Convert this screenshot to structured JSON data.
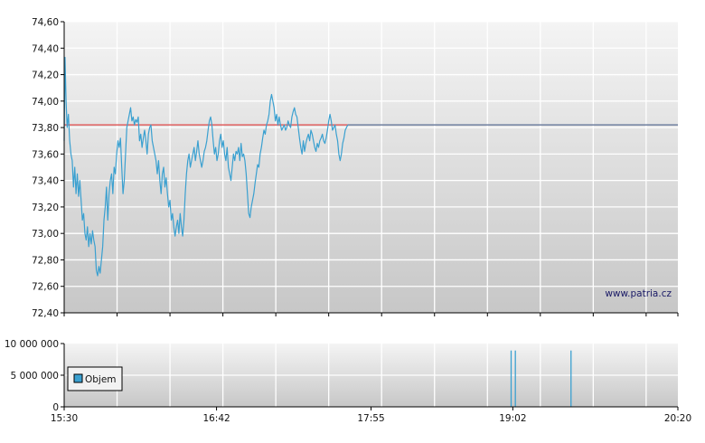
{
  "chart_data": [
    {
      "type": "line",
      "name": "price-chart",
      "ylim": [
        72.4,
        74.6
      ],
      "y_ticks": [
        "74,60",
        "74,40",
        "74,20",
        "74,00",
        "73,80",
        "73,60",
        "73,40",
        "73,20",
        "73,00",
        "72,80",
        "72,60",
        "72,40"
      ],
      "y_tick_values": [
        74.6,
        74.4,
        74.2,
        74.0,
        73.8,
        73.6,
        73.4,
        73.2,
        73.0,
        72.8,
        72.6,
        72.4
      ],
      "x_range_minutes": [
        0,
        290
      ],
      "reference_line": {
        "value": 73.82,
        "color": "#e06060"
      },
      "reference_extension_color": "#7080a0",
      "series_color": "#3aa0d0",
      "watermark": "www.patria.cz",
      "grid": true,
      "series": [
        {
          "points": [
            [
              0,
              73.7
            ],
            [
              0.4,
              74.33
            ],
            [
              0.9,
              74.0
            ],
            [
              1.4,
              73.8
            ],
            [
              2,
              73.9
            ],
            [
              2.6,
              73.7
            ],
            [
              3.2,
              73.6
            ],
            [
              3.8,
              73.55
            ],
            [
              4.4,
              73.35
            ],
            [
              5,
              73.5
            ],
            [
              5.6,
              73.3
            ],
            [
              6.2,
              73.45
            ],
            [
              6.8,
              73.28
            ],
            [
              7.4,
              73.4
            ],
            [
              8,
              73.25
            ],
            [
              8.6,
              73.1
            ],
            [
              9.2,
              73.15
            ],
            [
              9.8,
              73.0
            ],
            [
              10.4,
              72.95
            ],
            [
              11,
              73.05
            ],
            [
              11.6,
              72.9
            ],
            [
              12.2,
              73.0
            ],
            [
              12.8,
              72.92
            ],
            [
              13.4,
              73.02
            ],
            [
              14,
              72.95
            ],
            [
              14.6,
              72.9
            ],
            [
              15.2,
              72.72
            ],
            [
              15.8,
              72.68
            ],
            [
              16.4,
              72.75
            ],
            [
              17,
              72.7
            ],
            [
              17.6,
              72.8
            ],
            [
              18.2,
              72.9
            ],
            [
              18.8,
              73.1
            ],
            [
              19.4,
              73.2
            ],
            [
              20,
              73.35
            ],
            [
              20.6,
              73.1
            ],
            [
              21.2,
              73.3
            ],
            [
              21.8,
              73.4
            ],
            [
              22.4,
              73.45
            ],
            [
              23,
              73.3
            ],
            [
              23.6,
              73.5
            ],
            [
              24.2,
              73.45
            ],
            [
              24.8,
              73.6
            ],
            [
              25.4,
              73.7
            ],
            [
              26,
              73.65
            ],
            [
              26.6,
              73.72
            ],
            [
              27.2,
              73.5
            ],
            [
              27.8,
              73.3
            ],
            [
              28.4,
              73.4
            ],
            [
              29,
              73.6
            ],
            [
              29.6,
              73.8
            ],
            [
              30.2,
              73.85
            ],
            [
              30.8,
              73.9
            ],
            [
              31.4,
              73.95
            ],
            [
              32,
              73.85
            ],
            [
              32.6,
              73.88
            ],
            [
              33.2,
              73.82
            ],
            [
              33.8,
              73.86
            ],
            [
              34.4,
              73.84
            ],
            [
              35,
              73.88
            ],
            [
              35.6,
              73.7
            ],
            [
              36.2,
              73.75
            ],
            [
              36.8,
              73.65
            ],
            [
              37.4,
              73.72
            ],
            [
              38,
              73.78
            ],
            [
              38.6,
              73.7
            ],
            [
              39.2,
              73.6
            ],
            [
              39.8,
              73.75
            ],
            [
              40.4,
              73.8
            ],
            [
              41,
              73.82
            ],
            [
              41.6,
              73.7
            ],
            [
              42.2,
              73.65
            ],
            [
              42.8,
              73.6
            ],
            [
              43.4,
              73.55
            ],
            [
              44,
              73.45
            ],
            [
              44.6,
              73.55
            ],
            [
              45.2,
              73.4
            ],
            [
              45.8,
              73.3
            ],
            [
              46.4,
              73.45
            ],
            [
              47,
              73.5
            ],
            [
              47.6,
              73.35
            ],
            [
              48.2,
              73.42
            ],
            [
              48.8,
              73.3
            ],
            [
              49.4,
              73.2
            ],
            [
              50,
              73.25
            ],
            [
              50.6,
              73.1
            ],
            [
              51.2,
              73.15
            ],
            [
              51.8,
              73.05
            ],
            [
              52.4,
              72.98
            ],
            [
              53,
              73.05
            ],
            [
              53.6,
              73.1
            ],
            [
              54.2,
              73.0
            ],
            [
              54.8,
              73.15
            ],
            [
              55.4,
              73.05
            ],
            [
              56,
              72.98
            ],
            [
              56.6,
              73.1
            ],
            [
              57.2,
              73.3
            ],
            [
              57.8,
              73.45
            ],
            [
              58.4,
              73.55
            ],
            [
              59,
              73.6
            ],
            [
              59.6,
              73.5
            ],
            [
              60.2,
              73.55
            ],
            [
              60.8,
              73.6
            ],
            [
              61.4,
              73.65
            ],
            [
              62,
              73.55
            ],
            [
              62.6,
              73.62
            ],
            [
              63.2,
              73.7
            ],
            [
              63.8,
              73.6
            ],
            [
              64.4,
              73.55
            ],
            [
              65,
              73.5
            ],
            [
              65.6,
              73.55
            ],
            [
              66.2,
              73.62
            ],
            [
              66.8,
              73.65
            ],
            [
              67.4,
              73.7
            ],
            [
              68,
              73.78
            ],
            [
              68.6,
              73.85
            ],
            [
              69.2,
              73.88
            ],
            [
              69.8,
              73.82
            ],
            [
              70.4,
              73.7
            ],
            [
              71,
              73.6
            ],
            [
              71.6,
              73.65
            ],
            [
              72.2,
              73.55
            ],
            [
              72.8,
              73.6
            ],
            [
              73.4,
              73.7
            ],
            [
              74,
              73.75
            ],
            [
              74.6,
              73.65
            ],
            [
              75.2,
              73.7
            ],
            [
              75.8,
              73.6
            ],
            [
              76.4,
              73.55
            ],
            [
              77,
              73.65
            ],
            [
              77.6,
              73.5
            ],
            [
              78.2,
              73.45
            ],
            [
              78.8,
              73.4
            ],
            [
              79.4,
              73.5
            ],
            [
              80,
              73.6
            ],
            [
              80.6,
              73.55
            ],
            [
              81.2,
              73.62
            ],
            [
              81.8,
              73.6
            ],
            [
              82.4,
              73.65
            ],
            [
              83,
              73.55
            ],
            [
              83.6,
              73.68
            ],
            [
              84.2,
              73.58
            ],
            [
              84.8,
              73.6
            ],
            [
              85.4,
              73.55
            ],
            [
              86,
              73.45
            ],
            [
              86.6,
              73.3
            ],
            [
              87.2,
              73.15
            ],
            [
              87.8,
              73.12
            ],
            [
              88.4,
              73.2
            ],
            [
              89,
              73.25
            ],
            [
              89.6,
              73.3
            ],
            [
              90.2,
              73.38
            ],
            [
              90.8,
              73.45
            ],
            [
              91.4,
              73.52
            ],
            [
              92,
              73.5
            ],
            [
              92.6,
              73.6
            ],
            [
              93.2,
              73.65
            ],
            [
              93.8,
              73.72
            ],
            [
              94.4,
              73.78
            ],
            [
              95,
              73.75
            ],
            [
              95.6,
              73.82
            ],
            [
              96.2,
              73.85
            ],
            [
              96.8,
              73.9
            ],
            [
              97.4,
              74.0
            ],
            [
              98,
              74.05
            ],
            [
              98.6,
              74.0
            ],
            [
              99.2,
              73.95
            ],
            [
              99.8,
              73.85
            ],
            [
              100.4,
              73.9
            ],
            [
              101,
              73.82
            ],
            [
              101.6,
              73.88
            ],
            [
              102.2,
              73.82
            ],
            [
              102.8,
              73.78
            ],
            [
              103.4,
              73.8
            ],
            [
              104,
              73.82
            ],
            [
              104.6,
              73.78
            ],
            [
              105.2,
              73.8
            ],
            [
              105.8,
              73.85
            ],
            [
              106.4,
              73.82
            ],
            [
              107,
              73.8
            ],
            [
              107.6,
              73.88
            ],
            [
              108.2,
              73.92
            ],
            [
              108.8,
              73.95
            ],
            [
              109.4,
              73.9
            ],
            [
              110,
              73.88
            ],
            [
              110.6,
              73.8
            ],
            [
              111.2,
              73.72
            ],
            [
              111.8,
              73.65
            ],
            [
              112.4,
              73.6
            ],
            [
              113,
              73.7
            ],
            [
              113.6,
              73.62
            ],
            [
              114.2,
              73.68
            ],
            [
              114.8,
              73.72
            ],
            [
              115.4,
              73.75
            ],
            [
              116,
              73.7
            ],
            [
              116.6,
              73.78
            ],
            [
              117.2,
              73.75
            ],
            [
              117.8,
              73.7
            ],
            [
              118.4,
              73.65
            ],
            [
              119,
              73.62
            ],
            [
              119.6,
              73.68
            ],
            [
              120.2,
              73.65
            ],
            [
              120.8,
              73.7
            ],
            [
              121.4,
              73.72
            ],
            [
              122,
              73.75
            ],
            [
              122.6,
              73.7
            ],
            [
              123.2,
              73.68
            ],
            [
              123.8,
              73.72
            ],
            [
              124.4,
              73.78
            ],
            [
              125,
              73.85
            ],
            [
              125.6,
              73.9
            ],
            [
              126.2,
              73.85
            ],
            [
              126.8,
              73.78
            ],
            [
              127.4,
              73.8
            ],
            [
              128,
              73.82
            ],
            [
              128.6,
              73.75
            ],
            [
              129.2,
              73.7
            ],
            [
              129.8,
              73.6
            ],
            [
              130.4,
              73.55
            ],
            [
              131,
              73.6
            ],
            [
              131.6,
              73.68
            ],
            [
              132.2,
              73.72
            ],
            [
              132.8,
              73.78
            ],
            [
              133.4,
              73.8
            ],
            [
              134,
              73.82
            ]
          ]
        }
      ]
    },
    {
      "type": "bar",
      "name": "volume-chart",
      "ylim": [
        0,
        10000000
      ],
      "y_ticks": [
        "10 000 000",
        "5 000 000",
        "0"
      ],
      "y_tick_values": [
        10000000,
        5000000,
        0
      ],
      "x_ticks": [
        "15:30",
        "16:42",
        "17:55",
        "19:02",
        "20:20"
      ],
      "x_tick_minutes": [
        0,
        72,
        145,
        212,
        290
      ],
      "legend": "Objem",
      "legend_position": "left",
      "bar_color": "#3aa0d0",
      "bars": [
        {
          "x_minute": 211.2,
          "value": 8900000
        },
        {
          "x_minute": 213.2,
          "value": 8900000
        },
        {
          "x_minute": 239.5,
          "value": 8900000
        }
      ]
    }
  ]
}
